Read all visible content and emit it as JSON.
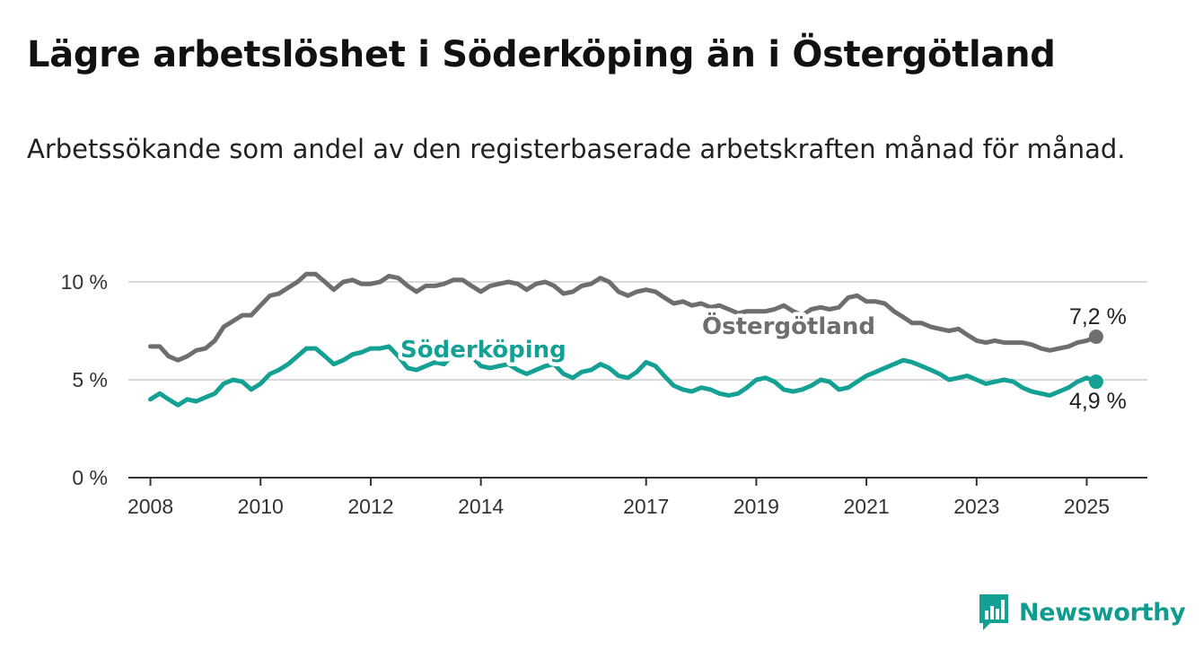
{
  "header": {
    "title": "Lägre arbetslöshet i Söderköping än i Östergötland",
    "subtitle": "Arbetssökande som andel av den registerbaserade arbetskraften månad för månad."
  },
  "brand": {
    "name": "Newsworthy",
    "icon": "bar-chart-logo-icon"
  },
  "colors": {
    "ostergotland": "#6e6e6e",
    "soderkoping": "#15a094",
    "grid": "#d9d9d9",
    "axis": "#333333"
  },
  "chart_data": {
    "type": "line",
    "title": "Lägre arbetslöshet i Söderköping än i Östergötland",
    "subtitle": "Arbetssökande som andel av den registerbaserade arbetskraften månad för månad.",
    "xlabel": "",
    "ylabel": "",
    "xlim": [
      2007.6,
      2026.1
    ],
    "ylim": [
      0,
      11
    ],
    "y_ticks": [
      0,
      5,
      10
    ],
    "y_tick_labels": [
      "0 %",
      "5 %",
      "10 %"
    ],
    "x_ticks": [
      2008,
      2010,
      2012,
      2014,
      2017,
      2019,
      2021,
      2023,
      2025
    ],
    "x_tick_labels": [
      "2008",
      "2010",
      "2012",
      "2014",
      "2017",
      "2019",
      "2021",
      "2023",
      "2025"
    ],
    "grid": true,
    "legend": "direct labels on lines",
    "series": [
      {
        "name": "Östergötland",
        "color": "#6e6e6e",
        "label": "Östergötland",
        "end_label": "7,2 %",
        "points": [
          [
            2008.0,
            6.7
          ],
          [
            2008.17,
            6.7
          ],
          [
            2008.33,
            6.2
          ],
          [
            2008.5,
            6.0
          ],
          [
            2008.67,
            6.2
          ],
          [
            2008.83,
            6.5
          ],
          [
            2009.0,
            6.6
          ],
          [
            2009.17,
            7.0
          ],
          [
            2009.33,
            7.7
          ],
          [
            2009.5,
            8.0
          ],
          [
            2009.67,
            8.3
          ],
          [
            2009.83,
            8.3
          ],
          [
            2010.0,
            8.8
          ],
          [
            2010.17,
            9.3
          ],
          [
            2010.33,
            9.4
          ],
          [
            2010.5,
            9.7
          ],
          [
            2010.67,
            10.0
          ],
          [
            2010.83,
            10.4
          ],
          [
            2011.0,
            10.4
          ],
          [
            2011.17,
            10.0
          ],
          [
            2011.33,
            9.6
          ],
          [
            2011.5,
            10.0
          ],
          [
            2011.67,
            10.1
          ],
          [
            2011.83,
            9.9
          ],
          [
            2012.0,
            9.9
          ],
          [
            2012.17,
            10.0
          ],
          [
            2012.33,
            10.3
          ],
          [
            2012.5,
            10.2
          ],
          [
            2012.67,
            9.8
          ],
          [
            2012.83,
            9.5
          ],
          [
            2013.0,
            9.8
          ],
          [
            2013.17,
            9.8
          ],
          [
            2013.33,
            9.9
          ],
          [
            2013.5,
            10.1
          ],
          [
            2013.67,
            10.1
          ],
          [
            2013.83,
            9.8
          ],
          [
            2014.0,
            9.5
          ],
          [
            2014.17,
            9.8
          ],
          [
            2014.33,
            9.9
          ],
          [
            2014.5,
            10.0
          ],
          [
            2014.67,
            9.9
          ],
          [
            2014.83,
            9.6
          ],
          [
            2015.0,
            9.9
          ],
          [
            2015.17,
            10.0
          ],
          [
            2015.33,
            9.8
          ],
          [
            2015.5,
            9.4
          ],
          [
            2015.67,
            9.5
          ],
          [
            2015.83,
            9.8
          ],
          [
            2016.0,
            9.9
          ],
          [
            2016.17,
            10.2
          ],
          [
            2016.33,
            10.0
          ],
          [
            2016.5,
            9.5
          ],
          [
            2016.67,
            9.3
          ],
          [
            2016.83,
            9.5
          ],
          [
            2017.0,
            9.6
          ],
          [
            2017.17,
            9.5
          ],
          [
            2017.33,
            9.2
          ],
          [
            2017.5,
            8.9
          ],
          [
            2017.67,
            9.0
          ],
          [
            2017.83,
            8.8
          ],
          [
            2018.0,
            8.9
          ],
          [
            2018.17,
            8.7
          ],
          [
            2018.33,
            8.8
          ],
          [
            2018.5,
            8.6
          ],
          [
            2018.67,
            8.4
          ],
          [
            2018.83,
            8.5
          ],
          [
            2019.0,
            8.5
          ],
          [
            2019.17,
            8.5
          ],
          [
            2019.33,
            8.6
          ],
          [
            2019.5,
            8.8
          ],
          [
            2019.67,
            8.5
          ],
          [
            2019.83,
            8.3
          ],
          [
            2020.0,
            8.6
          ],
          [
            2020.17,
            8.7
          ],
          [
            2020.33,
            8.6
          ],
          [
            2020.5,
            8.7
          ],
          [
            2020.67,
            9.2
          ],
          [
            2020.83,
            9.3
          ],
          [
            2021.0,
            9.0
          ],
          [
            2021.17,
            9.0
          ],
          [
            2021.33,
            8.9
          ],
          [
            2021.5,
            8.5
          ],
          [
            2021.67,
            8.2
          ],
          [
            2021.83,
            7.9
          ],
          [
            2022.0,
            7.9
          ],
          [
            2022.17,
            7.7
          ],
          [
            2022.33,
            7.6
          ],
          [
            2022.5,
            7.5
          ],
          [
            2022.67,
            7.6
          ],
          [
            2022.83,
            7.3
          ],
          [
            2023.0,
            7.0
          ],
          [
            2023.17,
            6.9
          ],
          [
            2023.33,
            7.0
          ],
          [
            2023.5,
            6.9
          ],
          [
            2023.67,
            6.9
          ],
          [
            2023.83,
            6.9
          ],
          [
            2024.0,
            6.8
          ],
          [
            2024.17,
            6.6
          ],
          [
            2024.33,
            6.5
          ],
          [
            2024.5,
            6.6
          ],
          [
            2024.67,
            6.7
          ],
          [
            2024.83,
            6.9
          ],
          [
            2025.0,
            7.0
          ],
          [
            2025.17,
            7.2
          ]
        ]
      },
      {
        "name": "Söderköping",
        "color": "#15a094",
        "label": "Söderköping",
        "end_label": "4,9 %",
        "points": [
          [
            2008.0,
            4.0
          ],
          [
            2008.17,
            4.3
          ],
          [
            2008.33,
            4.0
          ],
          [
            2008.5,
            3.7
          ],
          [
            2008.67,
            4.0
          ],
          [
            2008.83,
            3.9
          ],
          [
            2009.0,
            4.1
          ],
          [
            2009.17,
            4.3
          ],
          [
            2009.33,
            4.8
          ],
          [
            2009.5,
            5.0
          ],
          [
            2009.67,
            4.9
          ],
          [
            2009.83,
            4.5
          ],
          [
            2010.0,
            4.8
          ],
          [
            2010.17,
            5.3
          ],
          [
            2010.33,
            5.5
          ],
          [
            2010.5,
            5.8
          ],
          [
            2010.67,
            6.2
          ],
          [
            2010.83,
            6.6
          ],
          [
            2011.0,
            6.6
          ],
          [
            2011.17,
            6.2
          ],
          [
            2011.33,
            5.8
          ],
          [
            2011.5,
            6.0
          ],
          [
            2011.67,
            6.3
          ],
          [
            2011.83,
            6.4
          ],
          [
            2012.0,
            6.6
          ],
          [
            2012.17,
            6.6
          ],
          [
            2012.33,
            6.7
          ],
          [
            2012.5,
            6.2
          ],
          [
            2012.67,
            5.6
          ],
          [
            2012.83,
            5.5
          ],
          [
            2013.0,
            5.7
          ],
          [
            2013.17,
            5.9
          ],
          [
            2013.33,
            5.8
          ],
          [
            2013.5,
            6.3
          ],
          [
            2013.67,
            6.6
          ],
          [
            2013.83,
            6.2
          ],
          [
            2014.0,
            5.7
          ],
          [
            2014.17,
            5.6
          ],
          [
            2014.33,
            5.7
          ],
          [
            2014.5,
            5.8
          ],
          [
            2014.67,
            5.5
          ],
          [
            2014.83,
            5.3
          ],
          [
            2015.0,
            5.5
          ],
          [
            2015.17,
            5.7
          ],
          [
            2015.33,
            5.8
          ],
          [
            2015.5,
            5.3
          ],
          [
            2015.67,
            5.1
          ],
          [
            2015.83,
            5.4
          ],
          [
            2016.0,
            5.5
          ],
          [
            2016.17,
            5.8
          ],
          [
            2016.33,
            5.6
          ],
          [
            2016.5,
            5.2
          ],
          [
            2016.67,
            5.1
          ],
          [
            2016.83,
            5.4
          ],
          [
            2017.0,
            5.9
          ],
          [
            2017.17,
            5.7
          ],
          [
            2017.33,
            5.2
          ],
          [
            2017.5,
            4.7
          ],
          [
            2017.67,
            4.5
          ],
          [
            2017.83,
            4.4
          ],
          [
            2018.0,
            4.6
          ],
          [
            2018.17,
            4.5
          ],
          [
            2018.33,
            4.3
          ],
          [
            2018.5,
            4.2
          ],
          [
            2018.67,
            4.3
          ],
          [
            2018.83,
            4.6
          ],
          [
            2019.0,
            5.0
          ],
          [
            2019.17,
            5.1
          ],
          [
            2019.33,
            4.9
          ],
          [
            2019.5,
            4.5
          ],
          [
            2019.67,
            4.4
          ],
          [
            2019.83,
            4.5
          ],
          [
            2020.0,
            4.7
          ],
          [
            2020.17,
            5.0
          ],
          [
            2020.33,
            4.9
          ],
          [
            2020.5,
            4.5
          ],
          [
            2020.67,
            4.6
          ],
          [
            2020.83,
            4.9
          ],
          [
            2021.0,
            5.2
          ],
          [
            2021.17,
            5.4
          ],
          [
            2021.33,
            5.6
          ],
          [
            2021.5,
            5.8
          ],
          [
            2021.67,
            6.0
          ],
          [
            2021.83,
            5.9
          ],
          [
            2022.0,
            5.7
          ],
          [
            2022.17,
            5.5
          ],
          [
            2022.33,
            5.3
          ],
          [
            2022.5,
            5.0
          ],
          [
            2022.67,
            5.1
          ],
          [
            2022.83,
            5.2
          ],
          [
            2023.0,
            5.0
          ],
          [
            2023.17,
            4.8
          ],
          [
            2023.33,
            4.9
          ],
          [
            2023.5,
            5.0
          ],
          [
            2023.67,
            4.9
          ],
          [
            2023.83,
            4.6
          ],
          [
            2024.0,
            4.4
          ],
          [
            2024.17,
            4.3
          ],
          [
            2024.33,
            4.2
          ],
          [
            2024.5,
            4.4
          ],
          [
            2024.67,
            4.6
          ],
          [
            2024.83,
            4.9
          ],
          [
            2025.0,
            5.1
          ],
          [
            2025.17,
            4.9
          ]
        ]
      }
    ]
  }
}
